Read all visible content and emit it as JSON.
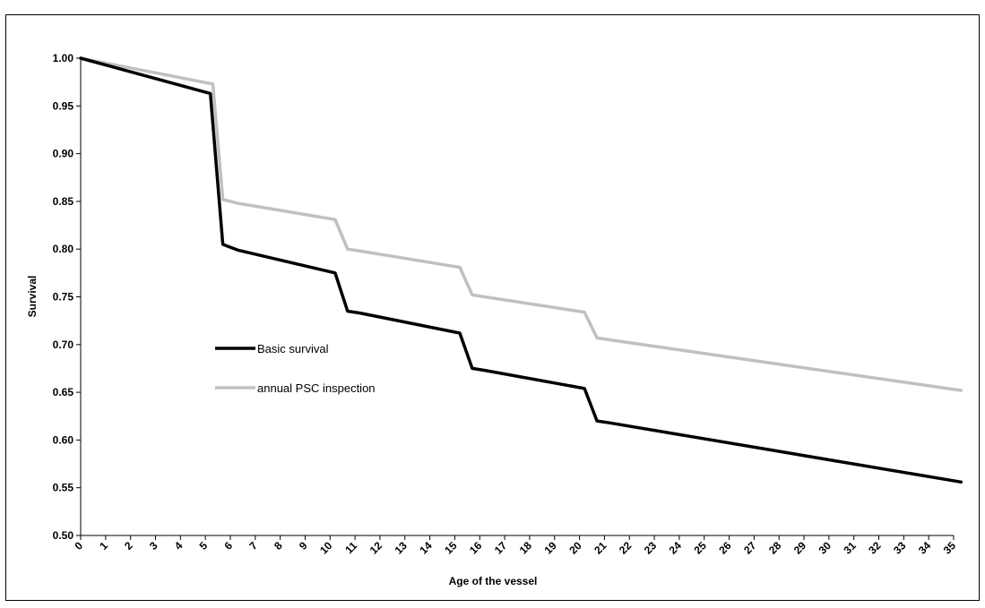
{
  "chart_data": {
    "type": "line",
    "title": "",
    "xlabel": "Age of the vessel",
    "ylabel": "Survival",
    "xlim": [
      0,
      35
    ],
    "ylim": [
      0.5,
      1.0
    ],
    "x_ticks": [
      "0",
      "1",
      "2",
      "3",
      "4",
      "5",
      "6",
      "7",
      "8",
      "9",
      "10",
      "11",
      "12",
      "13",
      "14",
      "15",
      "16",
      "17",
      "18",
      "19",
      "20",
      "21",
      "22",
      "23",
      "24",
      "25",
      "26",
      "27",
      "28",
      "29",
      "30",
      "31",
      "32",
      "33",
      "34",
      "35"
    ],
    "y_ticks": [
      "0.50",
      "0.55",
      "0.60",
      "0.65",
      "0.70",
      "0.75",
      "0.80",
      "0.85",
      "0.90",
      "0.95",
      "1.00"
    ],
    "grid": false,
    "legend_position": "center-left",
    "series": [
      {
        "name": "Basic survival",
        "color": "#000000",
        "x": [
          0,
          5.2,
          5.7,
          6.3,
          10.2,
          10.7,
          11.2,
          15.2,
          15.7,
          16.2,
          20.2,
          20.7,
          21.2,
          35.3
        ],
        "y": [
          1.0,
          0.963,
          0.805,
          0.799,
          0.775,
          0.735,
          0.733,
          0.712,
          0.675,
          0.673,
          0.654,
          0.62,
          0.618,
          0.556
        ]
      },
      {
        "name": "annual PSC inspection",
        "color": "#c0c0c0",
        "x": [
          0,
          5.3,
          5.7,
          6.3,
          10.2,
          10.7,
          11.2,
          15.2,
          15.7,
          16.2,
          20.2,
          20.7,
          21.2,
          35.3
        ],
        "y": [
          1.0,
          0.973,
          0.852,
          0.848,
          0.831,
          0.8,
          0.798,
          0.781,
          0.752,
          0.75,
          0.734,
          0.707,
          0.705,
          0.652
        ]
      }
    ]
  }
}
